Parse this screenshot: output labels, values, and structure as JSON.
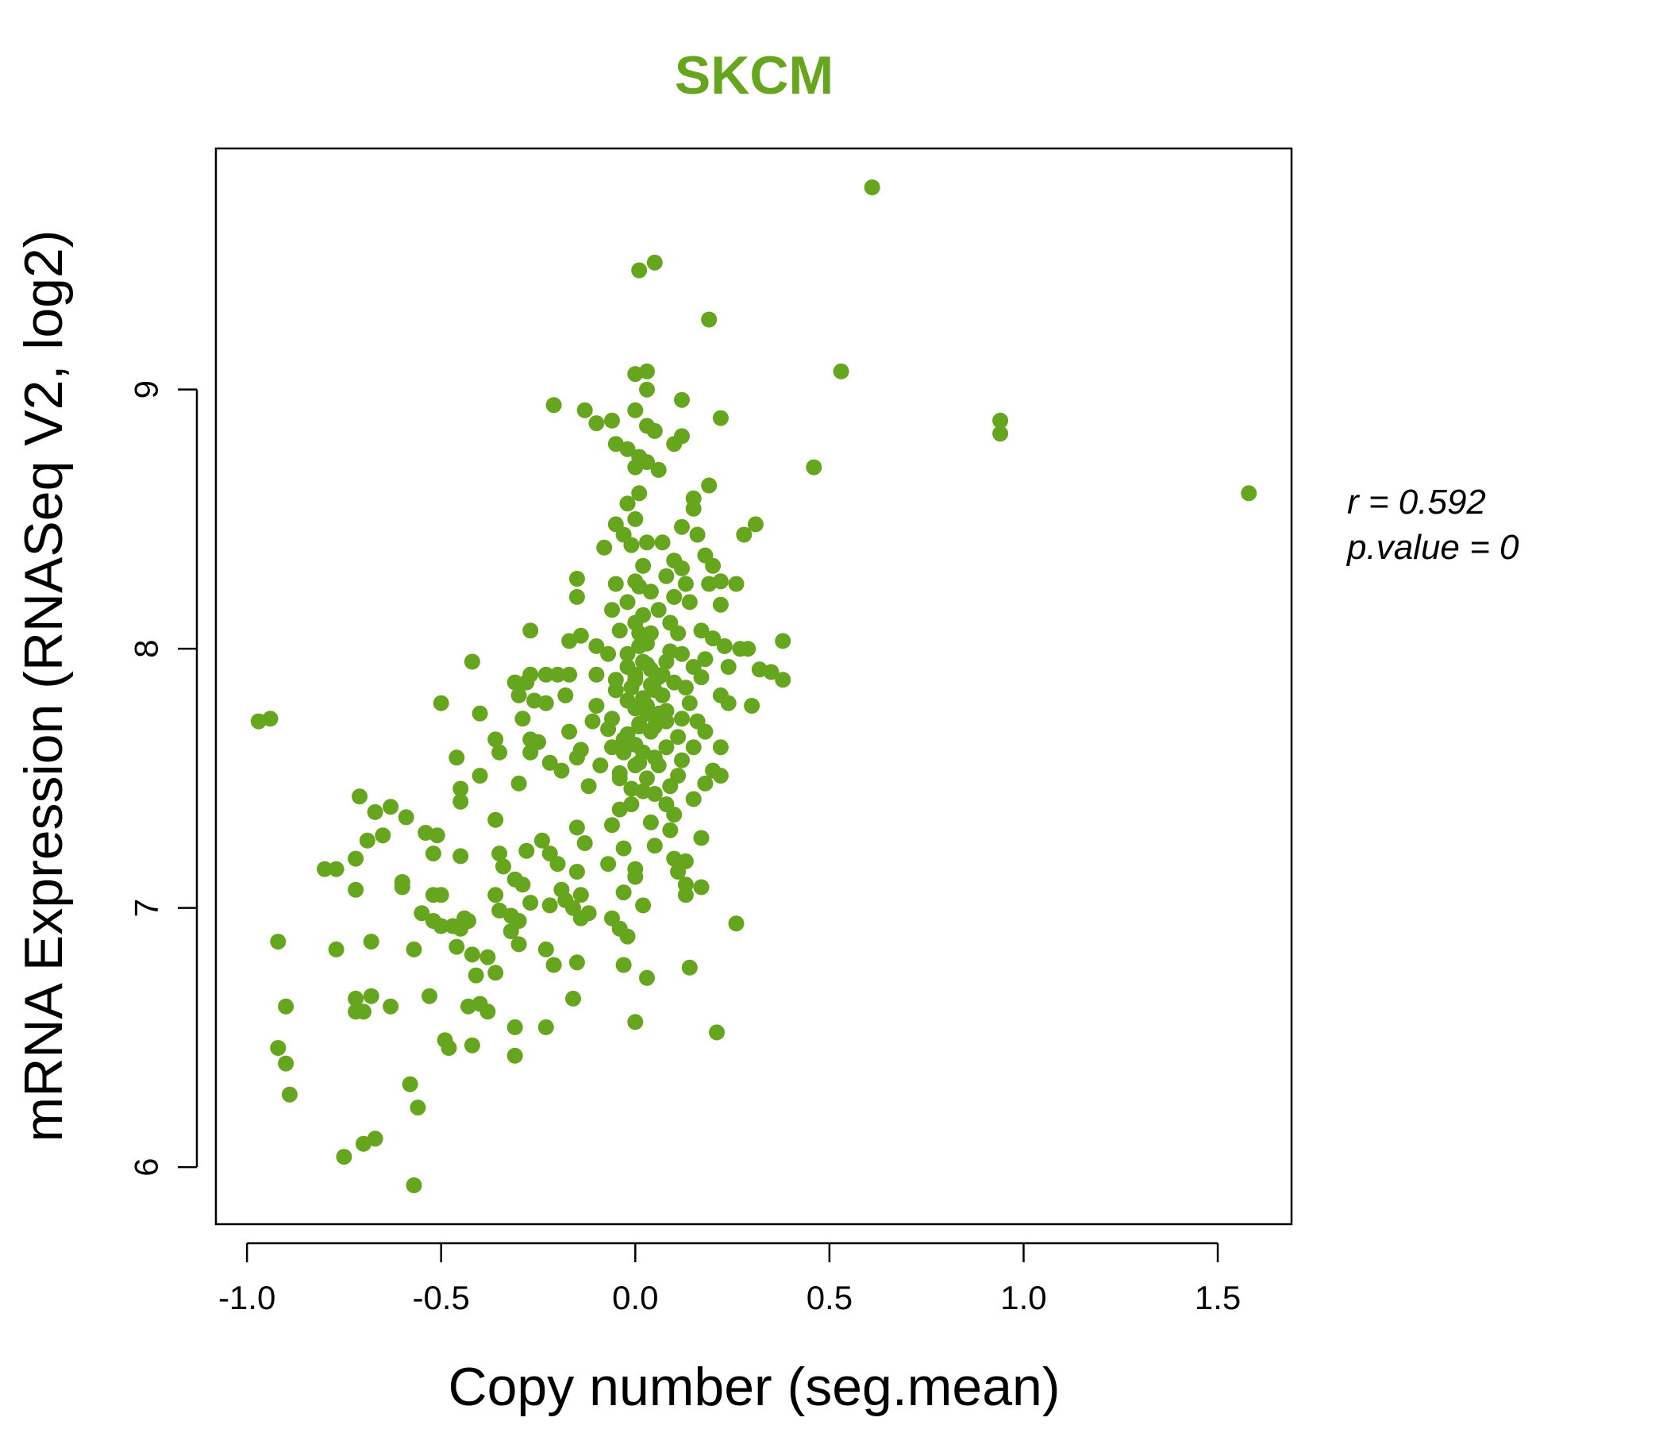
{
  "chart_data": {
    "type": "scatter",
    "title": "SKCM",
    "xlabel": "Copy number (seg.mean)",
    "ylabel": "mRNA Expression (RNASeq V2, log2)",
    "xlim": [
      -1.08,
      1.69
    ],
    "ylim": [
      5.78,
      9.93
    ],
    "x_ticks": [
      -1.0,
      -0.5,
      0.0,
      0.5,
      1.0,
      1.5
    ],
    "x_tick_labels": [
      "-1.0",
      "-0.5",
      "0.0",
      "0.5",
      "1.0",
      "1.5"
    ],
    "y_ticks": [
      6,
      7,
      8,
      9
    ],
    "y_tick_labels": [
      "6",
      "7",
      "8",
      "9"
    ],
    "grid": false,
    "legend": "none",
    "colors": {
      "point": "#66a61e",
      "title": "#66a61e",
      "axis": "#000000"
    },
    "annotation": {
      "r_line": "r = 0.592",
      "p_line": "p.value = 0"
    },
    "points": [
      [
        0.61,
        9.78
      ],
      [
        0.05,
        9.49
      ],
      [
        0.01,
        9.46
      ],
      [
        0.19,
        9.27
      ],
      [
        0.53,
        9.07
      ],
      [
        0.03,
        9.07
      ],
      [
        0.0,
        9.06
      ],
      [
        0.03,
        9.0
      ],
      [
        -0.21,
        8.94
      ],
      [
        -0.13,
        8.92
      ],
      [
        0.12,
        8.96
      ],
      [
        0.0,
        8.92
      ],
      [
        0.22,
        8.89
      ],
      [
        -0.06,
        8.88
      ],
      [
        -0.1,
        8.87
      ],
      [
        0.03,
        8.86
      ],
      [
        0.05,
        8.84
      ],
      [
        0.94,
        8.88
      ],
      [
        0.94,
        8.83
      ],
      [
        0.12,
        8.82
      ],
      [
        0.1,
        8.79
      ],
      [
        -0.05,
        8.79
      ],
      [
        -0.02,
        8.77
      ],
      [
        0.01,
        8.74
      ],
      [
        0.0,
        8.7
      ],
      [
        0.03,
        8.72
      ],
      [
        0.06,
        8.69
      ],
      [
        0.46,
        8.7
      ],
      [
        0.19,
        8.63
      ],
      [
        1.58,
        8.6
      ],
      [
        0.01,
        8.6
      ],
      [
        -0.02,
        8.56
      ],
      [
        0.15,
        8.58
      ],
      [
        0.15,
        8.54
      ],
      [
        0.31,
        8.48
      ],
      [
        0.12,
        8.47
      ],
      [
        -0.05,
        8.48
      ],
      [
        0.0,
        8.5
      ],
      [
        -0.03,
        8.44
      ],
      [
        0.28,
        8.44
      ],
      [
        0.16,
        8.44
      ],
      [
        0.07,
        8.41
      ],
      [
        0.03,
        8.41
      ],
      [
        -0.01,
        8.4
      ],
      [
        -0.08,
        8.39
      ],
      [
        0.18,
        8.36
      ],
      [
        0.1,
        8.34
      ],
      [
        0.2,
        8.32
      ],
      [
        0.02,
        8.32
      ],
      [
        0.12,
        8.31
      ],
      [
        -0.15,
        8.27
      ],
      [
        0.08,
        8.28
      ],
      [
        0.0,
        8.26
      ],
      [
        0.26,
        8.25
      ],
      [
        0.22,
        8.26
      ],
      [
        0.19,
        8.25
      ],
      [
        0.13,
        8.25
      ],
      [
        -0.05,
        8.25
      ],
      [
        0.01,
        8.24
      ],
      [
        0.04,
        8.22
      ],
      [
        -0.15,
        8.2
      ],
      [
        0.1,
        8.2
      ],
      [
        -0.02,
        8.18
      ],
      [
        0.14,
        8.18
      ],
      [
        0.22,
        8.17
      ],
      [
        0.06,
        8.15
      ],
      [
        -0.06,
        8.15
      ],
      [
        0.02,
        8.13
      ],
      [
        0.09,
        8.1
      ],
      [
        0.0,
        8.1
      ],
      [
        -0.04,
        8.07
      ],
      [
        0.17,
        8.07
      ],
      [
        -0.27,
        8.07
      ],
      [
        0.04,
        8.06
      ],
      [
        0.11,
        8.06
      ],
      [
        -0.14,
        8.05
      ],
      [
        0.2,
        8.04
      ],
      [
        -0.17,
        8.03
      ],
      [
        0.38,
        8.03
      ],
      [
        0.23,
        8.01
      ],
      [
        0.01,
        8.01
      ],
      [
        -0.1,
        8.01
      ],
      [
        0.27,
        8.0
      ],
      [
        0.09,
        7.99
      ],
      [
        0.29,
        8.0
      ],
      [
        0.12,
        7.98
      ],
      [
        -0.07,
        7.98
      ],
      [
        0.18,
        7.96
      ],
      [
        -0.42,
        7.95
      ],
      [
        0.08,
        7.95
      ],
      [
        0.03,
        7.94
      ],
      [
        0.24,
        7.93
      ],
      [
        0.15,
        7.93
      ],
      [
        -0.02,
        7.93
      ],
      [
        0.32,
        7.92
      ],
      [
        0.35,
        7.91
      ],
      [
        -0.2,
        7.9
      ],
      [
        -0.27,
        7.9
      ],
      [
        -0.23,
        7.9
      ],
      [
        -0.17,
        7.9
      ],
      [
        -0.1,
        7.9
      ],
      [
        0.17,
        7.89
      ],
      [
        0.06,
        7.89
      ],
      [
        0.38,
        7.88
      ],
      [
        0.0,
        7.88
      ],
      [
        -0.31,
        7.87
      ],
      [
        -0.28,
        7.87
      ],
      [
        0.1,
        7.87
      ],
      [
        0.04,
        7.86
      ],
      [
        0.13,
        7.85
      ],
      [
        -0.05,
        7.84
      ],
      [
        -0.3,
        7.82
      ],
      [
        -0.18,
        7.82
      ],
      [
        0.22,
        7.82
      ],
      [
        0.07,
        7.82
      ],
      [
        0.02,
        7.81
      ],
      [
        -0.26,
        7.8
      ],
      [
        -0.23,
        7.79
      ],
      [
        0.24,
        7.79
      ],
      [
        -0.5,
        7.79
      ],
      [
        0.14,
        7.79
      ],
      [
        0.3,
        7.78
      ],
      [
        -0.1,
        7.78
      ],
      [
        0.0,
        7.77
      ],
      [
        0.08,
        7.76
      ],
      [
        0.03,
        7.75
      ],
      [
        -0.4,
        7.75
      ],
      [
        -0.97,
        7.72
      ],
      [
        -0.94,
        7.73
      ],
      [
        -0.06,
        7.73
      ],
      [
        0.12,
        7.73
      ],
      [
        -0.29,
        7.73
      ],
      [
        0.16,
        7.72
      ],
      [
        -0.11,
        7.72
      ],
      [
        0.01,
        7.71
      ],
      [
        0.05,
        7.7
      ],
      [
        -0.07,
        7.69
      ],
      [
        -0.17,
        7.68
      ],
      [
        0.18,
        7.68
      ],
      [
        -0.02,
        7.67
      ],
      [
        0.11,
        7.66
      ],
      [
        -0.36,
        7.65
      ],
      [
        -0.27,
        7.65
      ],
      [
        -0.25,
        7.64
      ],
      [
        0.0,
        7.63
      ],
      [
        0.15,
        7.62
      ],
      [
        0.08,
        7.62
      ],
      [
        0.22,
        7.62
      ],
      [
        -0.14,
        7.61
      ],
      [
        -0.35,
        7.6
      ],
      [
        -0.27,
        7.6
      ],
      [
        -0.03,
        7.6
      ],
      [
        -0.46,
        7.58
      ],
      [
        -0.15,
        7.58
      ],
      [
        0.12,
        7.57
      ],
      [
        -0.22,
        7.56
      ],
      [
        0.01,
        7.56
      ],
      [
        0.06,
        7.55
      ],
      [
        -0.09,
        7.55
      ],
      [
        0.2,
        7.53
      ],
      [
        -0.19,
        7.53
      ],
      [
        0.22,
        7.51
      ],
      [
        0.11,
        7.51
      ],
      [
        -0.4,
        7.51
      ],
      [
        -0.04,
        7.5
      ],
      [
        0.03,
        7.5
      ],
      [
        0.18,
        7.48
      ],
      [
        -0.3,
        7.48
      ],
      [
        0.09,
        7.47
      ],
      [
        -0.12,
        7.47
      ],
      [
        -0.01,
        7.46
      ],
      [
        -0.45,
        7.46
      ],
      [
        0.05,
        7.44
      ],
      [
        -0.71,
        7.43
      ],
      [
        0.15,
        7.42
      ],
      [
        -0.45,
        7.41
      ],
      [
        0.08,
        7.4
      ],
      [
        -0.63,
        7.39
      ],
      [
        -0.04,
        7.38
      ],
      [
        -0.67,
        7.37
      ],
      [
        0.1,
        7.36
      ],
      [
        -0.59,
        7.35
      ],
      [
        -0.36,
        7.34
      ],
      [
        0.04,
        7.33
      ],
      [
        -0.06,
        7.32
      ],
      [
        -0.15,
        7.31
      ],
      [
        0.09,
        7.3
      ],
      [
        -0.54,
        7.29
      ],
      [
        -0.51,
        7.28
      ],
      [
        -0.65,
        7.28
      ],
      [
        0.17,
        7.27
      ],
      [
        -0.24,
        7.26
      ],
      [
        -0.69,
        7.26
      ],
      [
        -0.13,
        7.25
      ],
      [
        0.05,
        7.24
      ],
      [
        -0.03,
        7.23
      ],
      [
        -0.28,
        7.22
      ],
      [
        -0.35,
        7.21
      ],
      [
        -0.22,
        7.21
      ],
      [
        -0.52,
        7.21
      ],
      [
        -0.45,
        7.2
      ],
      [
        -0.72,
        7.19
      ],
      [
        0.1,
        7.19
      ],
      [
        0.13,
        7.18
      ],
      [
        -0.2,
        7.17
      ],
      [
        -0.07,
        7.17
      ],
      [
        -0.34,
        7.16
      ],
      [
        -0.8,
        7.15
      ],
      [
        -0.77,
        7.15
      ],
      [
        0.0,
        7.15
      ],
      [
        0.11,
        7.14
      ],
      [
        -0.15,
        7.14
      ],
      [
        -0.31,
        7.11
      ],
      [
        0.0,
        7.12
      ],
      [
        -0.6,
        7.1
      ],
      [
        -0.29,
        7.09
      ],
      [
        0.13,
        7.09
      ],
      [
        -0.6,
        7.08
      ],
      [
        0.17,
        7.08
      ],
      [
        -0.72,
        7.07
      ],
      [
        -0.19,
        7.07
      ],
      [
        -0.03,
        7.06
      ],
      [
        -0.52,
        7.05
      ],
      [
        -0.14,
        7.05
      ],
      [
        0.13,
        7.05
      ],
      [
        -0.5,
        7.05
      ],
      [
        -0.36,
        7.05
      ],
      [
        -0.18,
        7.03
      ],
      [
        -0.27,
        7.02
      ],
      [
        0.02,
        7.01
      ],
      [
        -0.22,
        7.01
      ],
      [
        -0.16,
        7.0
      ],
      [
        -0.35,
        6.99
      ],
      [
        -0.12,
        6.98
      ],
      [
        -0.55,
        6.98
      ],
      [
        -0.32,
        6.97
      ],
      [
        -0.44,
        6.96
      ],
      [
        -0.52,
        6.95
      ],
      [
        -0.06,
        6.96
      ],
      [
        -0.14,
        6.96
      ],
      [
        -0.3,
        6.95
      ],
      [
        -0.43,
        6.95
      ],
      [
        0.26,
        6.94
      ],
      [
        -0.5,
        6.93
      ],
      [
        -0.47,
        6.93
      ],
      [
        -0.04,
        6.92
      ],
      [
        -0.45,
        6.92
      ],
      [
        -0.32,
        6.91
      ],
      [
        -0.02,
        6.89
      ],
      [
        -0.92,
        6.87
      ],
      [
        -0.68,
        6.87
      ],
      [
        -0.3,
        6.86
      ],
      [
        -0.46,
        6.85
      ],
      [
        -0.57,
        6.84
      ],
      [
        -0.77,
        6.84
      ],
      [
        -0.23,
        6.84
      ],
      [
        -0.42,
        6.82
      ],
      [
        -0.38,
        6.81
      ],
      [
        -0.15,
        6.79
      ],
      [
        -0.21,
        6.78
      ],
      [
        -0.03,
        6.78
      ],
      [
        0.14,
        6.77
      ],
      [
        -0.36,
        6.75
      ],
      [
        -0.41,
        6.74
      ],
      [
        0.03,
        6.73
      ],
      [
        -0.53,
        6.66
      ],
      [
        -0.16,
        6.65
      ],
      [
        -0.72,
        6.65
      ],
      [
        -0.68,
        6.66
      ],
      [
        -0.9,
        6.62
      ],
      [
        -0.43,
        6.62
      ],
      [
        -0.63,
        6.62
      ],
      [
        -0.4,
        6.63
      ],
      [
        -0.72,
        6.6
      ],
      [
        -0.7,
        6.6
      ],
      [
        -0.38,
        6.6
      ],
      [
        0.0,
        6.56
      ],
      [
        -0.31,
        6.54
      ],
      [
        -0.23,
        6.54
      ],
      [
        0.21,
        6.52
      ],
      [
        -0.49,
        6.49
      ],
      [
        -0.48,
        6.46
      ],
      [
        -0.42,
        6.47
      ],
      [
        -0.92,
        6.46
      ],
      [
        -0.31,
        6.43
      ],
      [
        -0.9,
        6.4
      ],
      [
        -0.58,
        6.32
      ],
      [
        -0.89,
        6.28
      ],
      [
        -0.56,
        6.23
      ],
      [
        -0.67,
        6.11
      ],
      [
        -0.7,
        6.09
      ],
      [
        -0.75,
        6.04
      ],
      [
        -0.57,
        5.93
      ],
      [
        0.02,
        7.95
      ],
      [
        0.0,
        7.9
      ],
      [
        0.04,
        7.92
      ],
      [
        -0.01,
        7.85
      ],
      [
        0.03,
        7.78
      ],
      [
        0.05,
        7.84
      ],
      [
        -0.02,
        7.8
      ],
      [
        0.01,
        7.7
      ],
      [
        0.06,
        7.75
      ],
      [
        -0.03,
        7.65
      ],
      [
        0.02,
        7.6
      ],
      [
        0.0,
        7.55
      ],
      [
        -0.04,
        7.52
      ],
      [
        0.04,
        7.68
      ],
      [
        0.07,
        7.9
      ],
      [
        0.03,
        8.02
      ],
      [
        -0.02,
        7.98
      ],
      [
        0.01,
        8.06
      ],
      [
        -0.05,
        7.88
      ],
      [
        0.08,
        7.72
      ],
      [
        -0.06,
        7.62
      ],
      [
        0.02,
        7.45
      ],
      [
        -0.01,
        7.4
      ],
      [
        0.05,
        7.58
      ]
    ]
  }
}
